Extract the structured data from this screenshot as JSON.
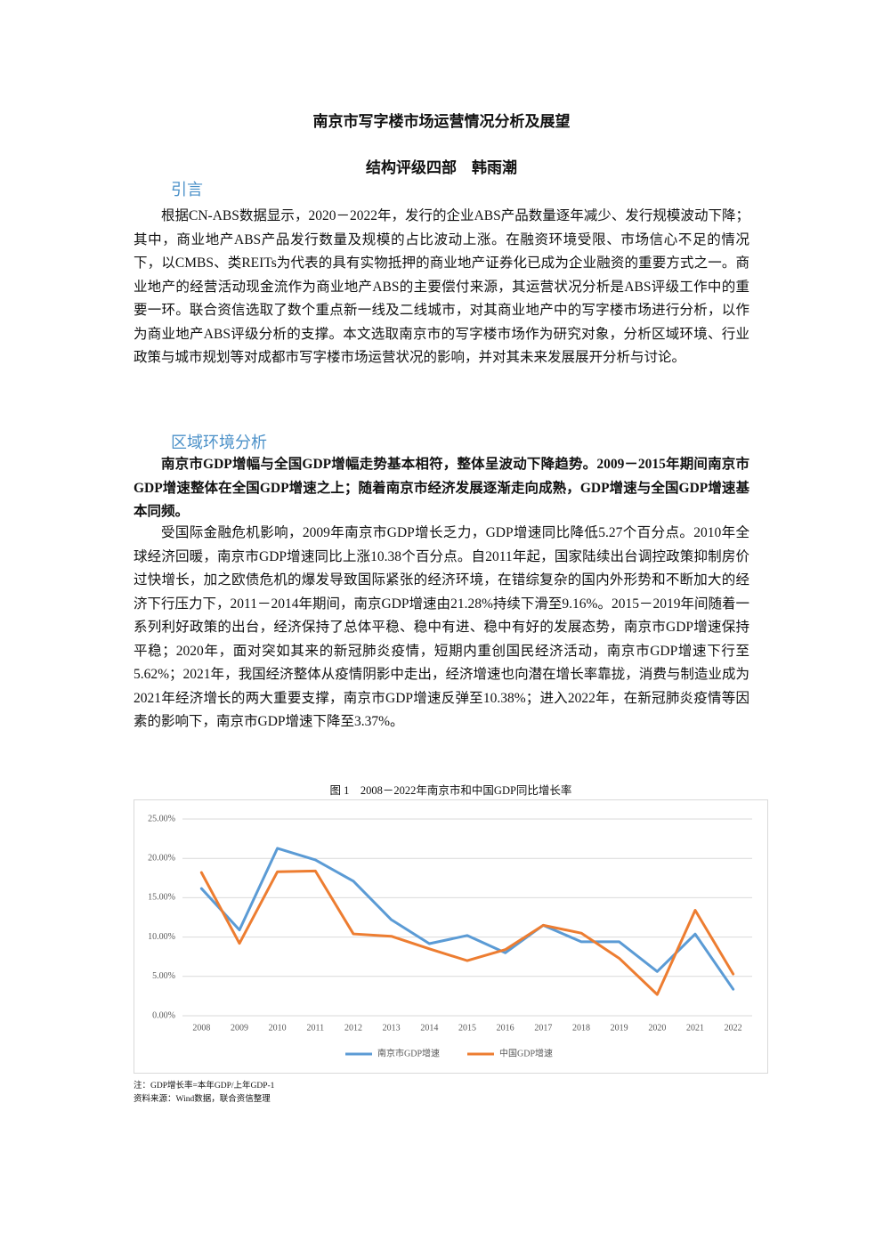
{
  "header": {
    "title": "南京市写字楼市场运营情况分析及展望",
    "author": "结构评级四部　韩雨潮"
  },
  "sections": [
    {
      "heading": "引言",
      "paragraphs": [
        {
          "text": "根据CN-ABS数据显示，2020－2022年，发行的企业ABS产品数量逐年减少、发行规模波动下降；其中，商业地产ABS产品发行数量及规模的占比波动上涨。在融资环境受限、市场信心不足的情况下，以CMBS、类REITs为代表的具有实物抵押的商业地产证券化已成为企业融资的重要方式之一。商业地产的经营活动现金流作为商业地产ABS的主要偿付来源，其运营状况分析是ABS评级工作中的重要一环。联合资信选取了数个重点新一线及二线城市，对其商业地产中的写字楼市场进行分析，以作为商业地产ABS评级分析的支撑。本文选取南京市的写字楼市场作为研究对象，分析区域环境、行业政策与城市规划等对成都市写字楼市场运营状况的影响，并对其未来发展展开分析与讨论。"
        }
      ]
    },
    {
      "heading": "区域环境分析",
      "paragraphs": [
        {
          "text": "南京市GDP增幅与全国GDP增幅走势基本相符，整体呈波动下降趋势。2009－2015年期间南京市GDP增速整体在全国GDP增速之上；随着南京市经济发展逐渐走向成熟，GDP增速与全国GDP增速基本同频。"
        },
        {
          "text": "受国际金融危机影响，2009年南京市GDP增长乏力，GDP增速同比降低5.27个百分点。2010年全球经济回暖，南京市GDP增速同比上涨10.38个百分点。自2011年起，国家陆续出台调控政策抑制房价过快增长，加之欧债危机的爆发导致国际紧张的经济环境，在错综复杂的国内外形势和不断加大的经济下行压力下，2011－2014年期间，南京GDP增速由21.28%持续下滑至9.16%。2015－2019年间随着一系列利好政策的出台，经济保持了总体平稳、稳中有进、稳中有好的发展态势，南京市GDP增速保持平稳；2020年，面对突如其来的新冠肺炎疫情，短期内重创国民经济活动，南京市GDP增速下行至5.62%；2021年，我国经济整体从疫情阴影中走出，经济增速也向潜在增长率靠拢，消费与制造业成为2021年经济增长的两大重要支撑，南京市GDP增速反弹至10.38%；进入2022年，在新冠肺炎疫情等因素的影响下，南京市GDP增速下降至3.37%。"
        }
      ]
    }
  ],
  "chart_data": {
    "type": "line",
    "title": "图 1　2008－2022年南京市和中国GDP同比增长率",
    "categories": [
      "2008",
      "2009",
      "2010",
      "2011",
      "2012",
      "2013",
      "2014",
      "2015",
      "2016",
      "2017",
      "2018",
      "2019",
      "2020",
      "2021",
      "2022"
    ],
    "series": [
      {
        "name": "南京市GDP增速",
        "color": "#5b9bd5",
        "values": [
          16.17,
          10.9,
          21.28,
          19.8,
          17.1,
          12.2,
          9.16,
          10.2,
          8.0,
          11.5,
          9.4,
          9.4,
          5.62,
          10.38,
          3.37
        ]
      },
      {
        "name": "中国GDP增速",
        "color": "#ed7d31",
        "values": [
          18.2,
          9.2,
          18.3,
          18.4,
          10.4,
          10.1,
          8.5,
          7.0,
          8.4,
          11.5,
          10.5,
          7.3,
          2.7,
          13.4,
          5.3
        ]
      }
    ],
    "ylim": [
      0,
      25
    ],
    "yticks": [
      {
        "value": 0,
        "label": "0.00%"
      },
      {
        "value": 5,
        "label": "5.00%"
      },
      {
        "value": 10,
        "label": "10.00%"
      },
      {
        "value": 15,
        "label": "15.00%"
      },
      {
        "value": 20,
        "label": "20.00%"
      },
      {
        "value": 25,
        "label": "25.00%"
      }
    ],
    "grid": true,
    "legend": "bottom"
  },
  "notes": [
    "注：GDP增长率=本年GDP/上年GDP-1",
    "资料来源：Wind数据，联合资信整理"
  ]
}
